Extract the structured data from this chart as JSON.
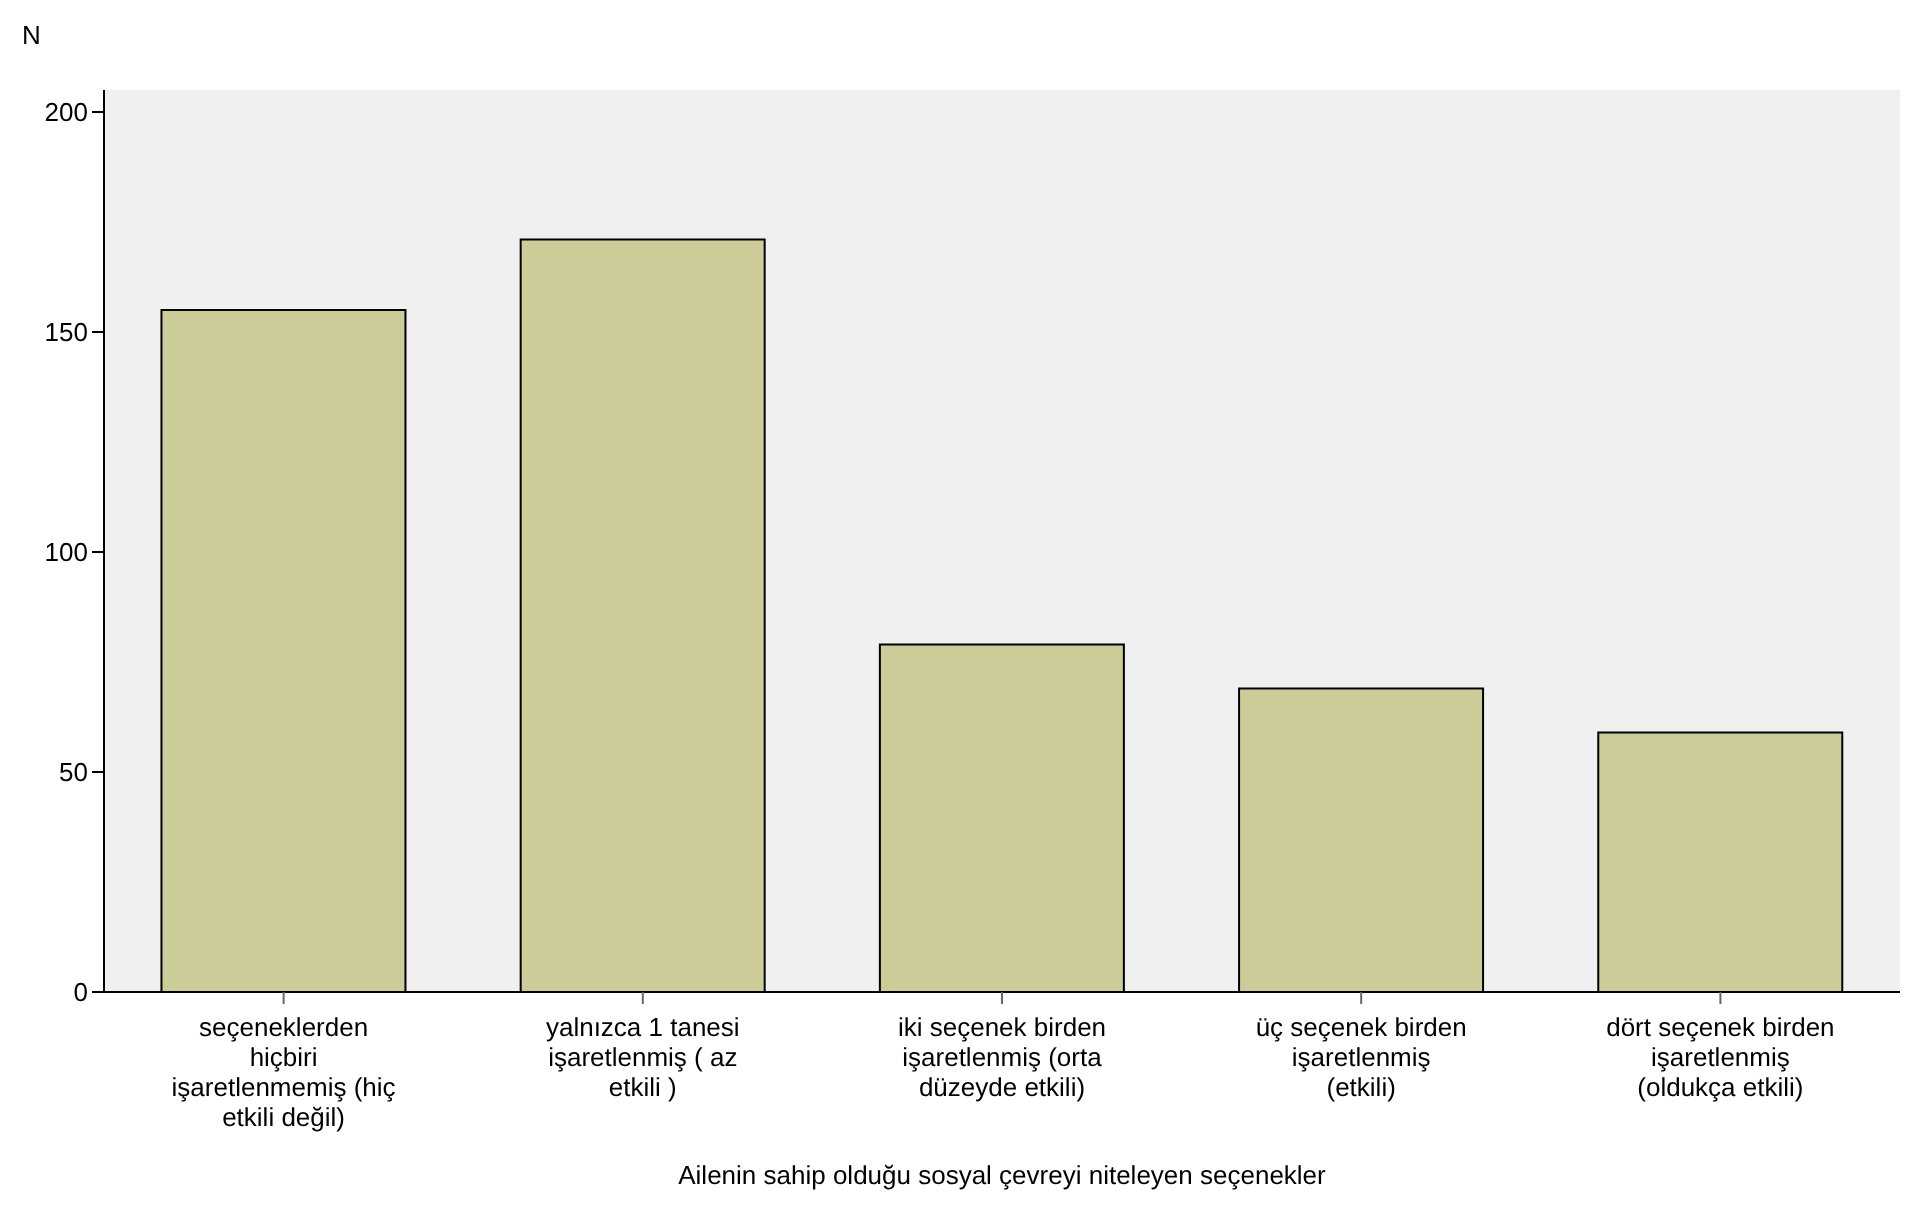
{
  "chart_data": {
    "type": "bar",
    "xlabel": "Ailenin sahip olduğu sosyal çevreyi niteleyen seçenekler",
    "ylabel": "N",
    "categories": [
      "seçeneklerden hiçbiri işaretlenmemiş (hiç etkili değil)",
      "yalnızca 1 tanesi işaretlenmiş ( az etkili )",
      "iki seçenek birden işaretlenmiş (orta düzeyde etkili)",
      "üç seçenek birden işaretlenmiş (etkili)",
      "dört seçenek birden işaretlenmiş (oldukça etkili)"
    ],
    "values": [
      155,
      171,
      79,
      69,
      59
    ],
    "color": "#cccc99",
    "ylim": [
      0,
      205
    ],
    "yticks": [
      0,
      50,
      100,
      150,
      200
    ],
    "grid": false
  }
}
